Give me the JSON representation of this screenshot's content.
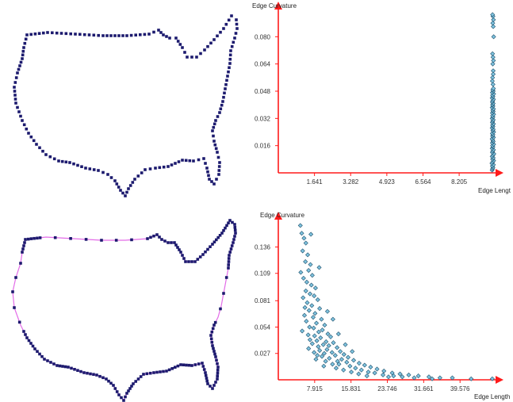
{
  "colors": {
    "axis": "#ff1a1a",
    "outline_vertex": "#1c1a6e",
    "outline_edge": "#e36ce8",
    "scatter_fill": "#7fc3df",
    "scatter_stroke": "#1d4f6a"
  },
  "outlines": [
    {
      "name": "us-outline-uniform",
      "shows_edges": false
    },
    {
      "name": "us-outline-adaptive",
      "shows_edges": true
    }
  ],
  "chart_data": [
    {
      "type": "scatter",
      "xlabel": "Edge Lengt",
      "ylabel": "Edge Curvature",
      "xticks": [
        1.641,
        3.282,
        4.923,
        6.564,
        8.205
      ],
      "yticks": [
        0.016,
        0.032,
        0.048,
        0.064,
        0.08
      ],
      "xtick_labels": [
        "1.641",
        "3.282",
        "4.923",
        "6.564",
        "8.205"
      ],
      "ytick_labels": [
        "0.016",
        "0.032",
        "0.048",
        "0.064",
        "0.080"
      ],
      "xlim": [
        0,
        10.0
      ],
      "ylim": [
        0,
        0.096
      ],
      "points": [
        [
          9.7,
          0.0016
        ],
        [
          9.72,
          0.0024
        ],
        [
          9.74,
          0.0032
        ],
        [
          9.71,
          0.004
        ],
        [
          9.76,
          0.0048
        ],
        [
          9.69,
          0.0056
        ],
        [
          9.73,
          0.0064
        ],
        [
          9.77,
          0.0072
        ],
        [
          9.72,
          0.008
        ],
        [
          9.75,
          0.0088
        ],
        [
          9.7,
          0.0096
        ],
        [
          9.74,
          0.0104
        ],
        [
          9.78,
          0.0112
        ],
        [
          9.71,
          0.012
        ],
        [
          9.73,
          0.0128
        ],
        [
          9.76,
          0.0136
        ],
        [
          9.7,
          0.0144
        ],
        [
          9.74,
          0.0152
        ],
        [
          9.72,
          0.016
        ],
        [
          9.77,
          0.0168
        ],
        [
          9.71,
          0.0176
        ],
        [
          9.75,
          0.0184
        ],
        [
          9.73,
          0.0192
        ],
        [
          9.7,
          0.02
        ],
        [
          9.76,
          0.0208
        ],
        [
          9.72,
          0.0216
        ],
        [
          9.74,
          0.0224
        ],
        [
          9.71,
          0.0232
        ],
        [
          9.77,
          0.024
        ],
        [
          9.73,
          0.0248
        ],
        [
          9.75,
          0.0256
        ],
        [
          9.7,
          0.0264
        ],
        [
          9.74,
          0.0272
        ],
        [
          9.72,
          0.028
        ],
        [
          9.76,
          0.0288
        ],
        [
          9.71,
          0.0296
        ],
        [
          9.73,
          0.0304
        ],
        [
          9.75,
          0.0312
        ],
        [
          9.7,
          0.032
        ],
        [
          9.74,
          0.0328
        ],
        [
          9.72,
          0.0336
        ],
        [
          9.77,
          0.0344
        ],
        [
          9.71,
          0.0352
        ],
        [
          9.75,
          0.036
        ],
        [
          9.73,
          0.0368
        ],
        [
          9.76,
          0.0376
        ],
        [
          9.7,
          0.0384
        ],
        [
          9.74,
          0.0392
        ],
        [
          9.72,
          0.04
        ],
        [
          9.75,
          0.0408
        ],
        [
          9.71,
          0.0416
        ],
        [
          9.73,
          0.0424
        ],
        [
          9.76,
          0.0432
        ],
        [
          9.7,
          0.044
        ],
        [
          9.74,
          0.0448
        ],
        [
          9.72,
          0.0456
        ],
        [
          9.77,
          0.0464
        ],
        [
          9.71,
          0.0472
        ],
        [
          9.75,
          0.048
        ],
        [
          9.73,
          0.0488
        ],
        [
          9.76,
          0.0496
        ],
        [
          9.74,
          0.052
        ],
        [
          9.72,
          0.056
        ],
        [
          9.75,
          0.06
        ],
        [
          9.73,
          0.064
        ],
        [
          9.76,
          0.066
        ],
        [
          9.74,
          0.068
        ],
        [
          9.72,
          0.07
        ],
        [
          9.75,
          0.086
        ],
        [
          9.73,
          0.088
        ],
        [
          9.76,
          0.09
        ],
        [
          9.74,
          0.092
        ],
        [
          9.72,
          0.093
        ],
        [
          9.77,
          0.08
        ],
        [
          9.71,
          0.054
        ],
        [
          9.75,
          0.058
        ]
      ]
    },
    {
      "type": "scatter",
      "xlabel": "Edge Length",
      "ylabel": "Edge Curvature",
      "xticks": [
        7.915,
        15.831,
        23.746,
        31.661,
        39.576
      ],
      "yticks": [
        0.027,
        0.054,
        0.081,
        0.109,
        0.136
      ],
      "xtick_labels": [
        "7.915",
        "15.831",
        "23.746",
        "31.661",
        "39.576"
      ],
      "ytick_labels": [
        "0.027",
        "0.054",
        "0.081",
        "0.109",
        "0.136"
      ],
      "xlim": [
        0,
        48.0
      ],
      "ylim": [
        0,
        0.164
      ],
      "points": [
        [
          4.8,
          0.158
        ],
        [
          5.1,
          0.15
        ],
        [
          5.6,
          0.145
        ],
        [
          6.0,
          0.14
        ],
        [
          5.3,
          0.132
        ],
        [
          6.4,
          0.128
        ],
        [
          5.9,
          0.121
        ],
        [
          7.0,
          0.118
        ],
        [
          6.6,
          0.112
        ],
        [
          7.4,
          0.107
        ],
        [
          5.5,
          0.104
        ],
        [
          6.2,
          0.1
        ],
        [
          7.2,
          0.097
        ],
        [
          8.1,
          0.094
        ],
        [
          6.0,
          0.091
        ],
        [
          6.9,
          0.088
        ],
        [
          7.8,
          0.086
        ],
        [
          5.4,
          0.084
        ],
        [
          8.6,
          0.082
        ],
        [
          6.3,
          0.079
        ],
        [
          7.3,
          0.076
        ],
        [
          9.0,
          0.073
        ],
        [
          6.7,
          0.071
        ],
        [
          8.0,
          0.068
        ],
        [
          5.7,
          0.066
        ],
        [
          7.6,
          0.064
        ],
        [
          9.4,
          0.062
        ],
        [
          6.1,
          0.06
        ],
        [
          8.3,
          0.058
        ],
        [
          10.1,
          0.056
        ],
        [
          6.8,
          0.054
        ],
        [
          7.7,
          0.053
        ],
        [
          9.6,
          0.051
        ],
        [
          5.2,
          0.05
        ],
        [
          8.8,
          0.049
        ],
        [
          10.8,
          0.047
        ],
        [
          6.5,
          0.046
        ],
        [
          7.9,
          0.045
        ],
        [
          11.4,
          0.044
        ],
        [
          9.2,
          0.043
        ],
        [
          6.9,
          0.041
        ],
        [
          8.4,
          0.04
        ],
        [
          10.4,
          0.039
        ],
        [
          12.0,
          0.038
        ],
        [
          7.4,
          0.037
        ],
        [
          9.8,
          0.036
        ],
        [
          11.0,
          0.035
        ],
        [
          8.7,
          0.034
        ],
        [
          12.8,
          0.033
        ],
        [
          6.6,
          0.032
        ],
        [
          10.6,
          0.031
        ],
        [
          9.0,
          0.03
        ],
        [
          13.5,
          0.029
        ],
        [
          7.8,
          0.028
        ],
        [
          11.7,
          0.028
        ],
        [
          10.0,
          0.027
        ],
        [
          14.3,
          0.026
        ],
        [
          8.5,
          0.025
        ],
        [
          12.4,
          0.025
        ],
        [
          9.5,
          0.024
        ],
        [
          15.2,
          0.023
        ],
        [
          11.1,
          0.022
        ],
        [
          13.8,
          0.021
        ],
        [
          8.2,
          0.021
        ],
        [
          16.4,
          0.02
        ],
        [
          12.9,
          0.019
        ],
        [
          10.3,
          0.019
        ],
        [
          14.9,
          0.018
        ],
        [
          17.6,
          0.017
        ],
        [
          11.8,
          0.016
        ],
        [
          13.2,
          0.016
        ],
        [
          18.8,
          0.015
        ],
        [
          15.6,
          0.014
        ],
        [
          9.9,
          0.014
        ],
        [
          20.1,
          0.013
        ],
        [
          16.8,
          0.012
        ],
        [
          12.6,
          0.012
        ],
        [
          21.5,
          0.011
        ],
        [
          14.2,
          0.01
        ],
        [
          18.1,
          0.01
        ],
        [
          23.0,
          0.009
        ],
        [
          19.6,
          0.008
        ],
        [
          15.9,
          0.008
        ],
        [
          24.8,
          0.007
        ],
        [
          21.0,
          0.007
        ],
        [
          26.5,
          0.006
        ],
        [
          17.5,
          0.006
        ],
        [
          22.8,
          0.005
        ],
        [
          28.4,
          0.005
        ],
        [
          25.1,
          0.004
        ],
        [
          30.5,
          0.004
        ],
        [
          19.3,
          0.004
        ],
        [
          27.0,
          0.003
        ],
        [
          32.8,
          0.003
        ],
        [
          24.0,
          0.003
        ],
        [
          35.2,
          0.002
        ],
        [
          29.6,
          0.002
        ],
        [
          37.9,
          0.002
        ],
        [
          42.0,
          0.001
        ],
        [
          33.5,
          0.001
        ],
        [
          46.6,
          0.001
        ],
        [
          11.9,
          0.062
        ],
        [
          13.1,
          0.047
        ],
        [
          7.1,
          0.149
        ],
        [
          10.7,
          0.07
        ],
        [
          14.6,
          0.036
        ],
        [
          16.1,
          0.029
        ],
        [
          4.9,
          0.11
        ],
        [
          8.9,
          0.115
        ],
        [
          5.8,
          0.074
        ]
      ]
    }
  ]
}
